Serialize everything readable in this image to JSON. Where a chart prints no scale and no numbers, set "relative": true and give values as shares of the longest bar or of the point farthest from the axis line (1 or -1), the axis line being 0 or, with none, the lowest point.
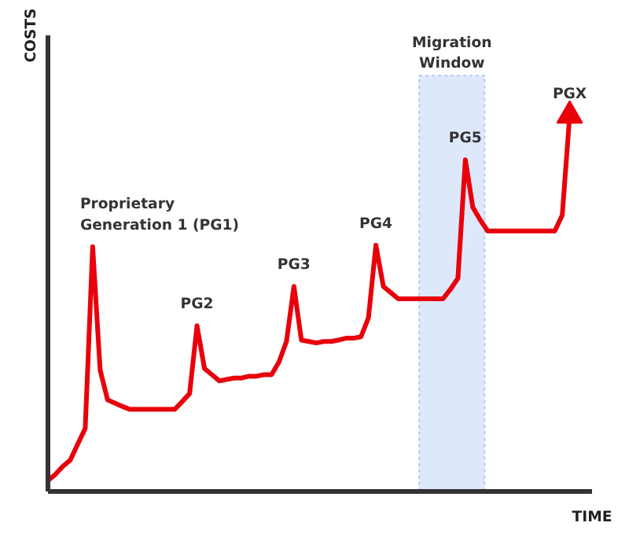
{
  "chart_data": {
    "type": "line",
    "relative": true,
    "xlabel": "TIME",
    "ylabel": "COSTS",
    "marker": "none",
    "line_style": "solid",
    "categories": [
      null,
      null,
      null,
      null,
      null,
      null,
      null,
      null,
      null,
      null,
      null,
      null,
      null,
      null,
      null,
      null,
      null,
      null,
      null,
      null,
      null,
      null,
      null,
      null,
      null,
      null,
      null,
      null,
      null,
      null,
      null,
      null,
      null,
      null,
      null,
      null,
      null,
      null,
      null,
      null,
      null,
      null,
      null,
      null,
      null,
      null,
      null,
      null,
      null,
      null,
      null,
      null,
      null,
      null,
      null,
      null,
      null,
      null,
      null,
      null,
      null,
      null,
      null,
      null,
      null,
      null,
      null,
      null,
      null,
      null,
      null
    ],
    "series": [
      {
        "color": "#e8000b",
        "values": [
          0,
          0.017,
          0.039,
          0.056,
          0.1,
          0.143,
          0.641,
          0.303,
          0.221,
          0.212,
          0.203,
          0.195,
          0.195,
          0.195,
          0.195,
          0.195,
          0.195,
          0.195,
          0.216,
          0.238,
          0.424,
          0.307,
          0.29,
          0.273,
          0.277,
          0.281,
          0.281,
          0.286,
          0.286,
          0.29,
          0.29,
          0.325,
          0.381,
          0.532,
          0.385,
          0.381,
          0.377,
          0.381,
          0.381,
          0.385,
          0.39,
          0.39,
          0.394,
          0.446,
          0.645,
          0.532,
          0.515,
          0.498,
          0.498,
          0.498,
          0.498,
          0.498,
          0.498,
          0.498,
          0.524,
          0.554,
          0.879,
          0.749,
          0.714,
          0.684,
          0.684,
          0.684,
          0.684,
          0.684,
          0.684,
          0.684,
          0.684,
          0.684,
          0.684,
          0.727,
          1.0
        ]
      }
    ],
    "annotations": [
      "Proprietary\nGeneration 1 (PG1)",
      "PG2",
      "PG3",
      "PG4",
      "PG5",
      "PGX",
      "Migration\nWindow"
    ]
  }
}
